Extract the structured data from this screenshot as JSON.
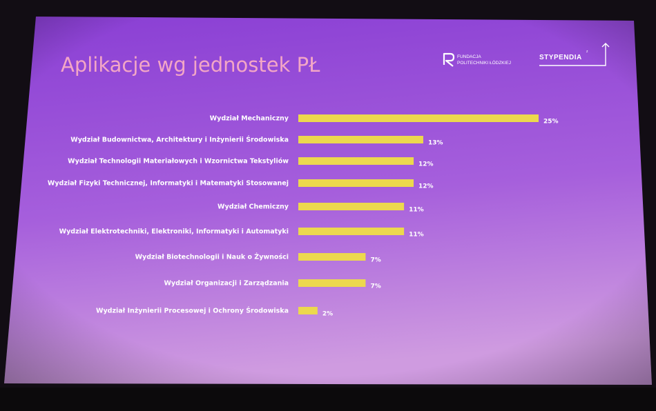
{
  "slide": {
    "title": "Aplikacje wg jednostek PŁ",
    "logos": {
      "fundacja_line1": "FUNDACJA",
      "fundacja_line2": "POLITECHNIKI ŁÓDZKIEJ",
      "stypendia": "STYPENDIA",
      "stypendia_small": "z"
    }
  },
  "colors": {
    "bar": "#ecd84e",
    "slide_top": "#8a3fd4",
    "slide_bottom": "#c58ad9",
    "title": "#f3a6c6"
  },
  "chart_data": {
    "type": "bar",
    "orientation": "horizontal",
    "title": "",
    "xlabel": "",
    "ylabel": "",
    "xlim": [
      0,
      25
    ],
    "grid": false,
    "categories": [
      "Wydział Mechaniczny",
      "Wydział Budownictwa, Architektury i Inżynierii Środowiska",
      "Wydział Technologii Materiałowych i Wzornictwa Tekstyliów",
      "Wydział Fizyki Technicznej, Informatyki i Matematyki Stosowanej",
      "Wydział Chemiczny",
      "Wydział Elektrotechniki, Elektroniki, Informatyki i Automatyki",
      "Wydział Biotechnologii i Nauk o Żywności",
      "Wydział Organizacji i Zarządzania",
      "Wydział Inżynierii Procesowej i Ochrony Środowiska"
    ],
    "values": [
      25,
      13,
      12,
      12,
      11,
      11,
      7,
      7,
      2
    ],
    "value_labels": [
      "25%",
      "13%",
      "12%",
      "12%",
      "11%",
      "11%",
      "7%",
      "7%",
      "2%"
    ]
  }
}
